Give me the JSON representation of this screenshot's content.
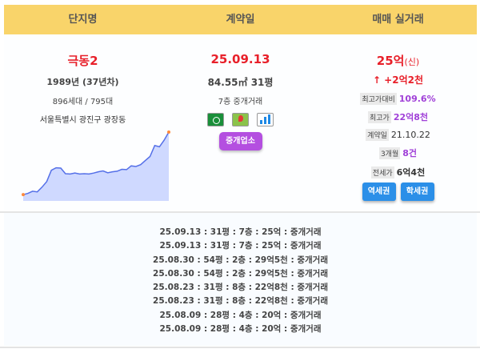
{
  "header": {
    "col1": "단지명",
    "col2": "계약일",
    "col3": "매매 실거래"
  },
  "complex": {
    "name": "극동2",
    "year": "1989년 (37년차)",
    "units": "896세대 / 795대",
    "address": "서울특별시 광진구 광장동",
    "trend": [
      2.0,
      2.4,
      3.1,
      2.9,
      4.4,
      6.2,
      9.8,
      10.6,
      10.5,
      8.7,
      8.6,
      8.9,
      8.6,
      8.7,
      8.6,
      8.9,
      9.3,
      9.6,
      9.0,
      9.3,
      9.5,
      10.1,
      10.0,
      11.2,
      11.0,
      11.6,
      12.9,
      14.2,
      17.7,
      17.3,
      19.4,
      22.0
    ]
  },
  "contract": {
    "date": "25.09.13",
    "area": "84.55㎡ 31평",
    "floor_type": "7층 중개거래",
    "icons": [
      "green-circle-icon",
      "map-icon",
      "chart-icon"
    ],
    "agent_button": "중개업소"
  },
  "sale": {
    "price": "25억",
    "price_suffix": "(신)",
    "change": "↑ +2억2천",
    "ratio_label": "최고가대비",
    "ratio_value": "109.6%",
    "high_label": "최고가",
    "high_value": "22억8천",
    "contract_label": "계약일",
    "contract_value": "21.10.22",
    "months_label": "3개월",
    "months_value": "8건",
    "jeonse_label": "전세가",
    "jeonse_value": "6억4천",
    "btn_station": "역세권",
    "btn_school": "학세권"
  },
  "trades": [
    "25.09.13 : 31평 : 7층 : 25억 : 중개거래",
    "25.09.13 : 31평 : 7층 : 25억 : 중개거래",
    "25.08.30 : 54평 : 2층 : 29억5천 : 중개거래",
    "25.08.30 : 54평 : 2층 : 29억5천 : 중개거래",
    "25.08.23 : 31평 : 8층 : 22억8천 : 중개거래",
    "25.08.23 : 31평 : 8층 : 22억8천 : 중개거래",
    "25.08.09 : 28평 : 4층 : 20억 : 중개거래",
    "25.08.09 : 28평 : 4층 : 20억 : 중개거래"
  ],
  "colors": {
    "header": "#f9d46a",
    "accent_red": "#e8202a",
    "purple": "#a040d8",
    "blue_button": "#2b8fe8",
    "agent_button": "#b44fe0"
  }
}
